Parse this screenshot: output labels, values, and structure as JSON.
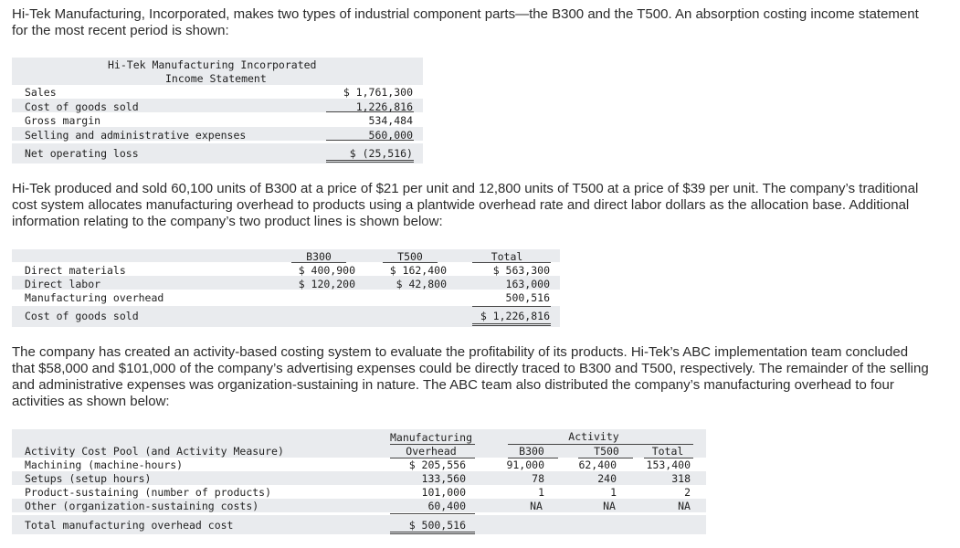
{
  "intro": "Hi-Tek Manufacturing, Incorporated, makes two types of industrial component parts—the B300 and the T500. An absorption costing income statement for the most recent period is shown:",
  "income_statement": {
    "company": "Hi-Tek Manufacturing Incorporated",
    "title": "Income Statement",
    "rows": [
      {
        "label": "Sales",
        "value": "$ 1,761,300"
      },
      {
        "label": "Cost of goods sold",
        "value": "1,226,816"
      },
      {
        "label": "Gross margin",
        "value": "534,484"
      },
      {
        "label": "Selling and administrative expenses",
        "value": "560,000"
      },
      {
        "label": "Net operating loss",
        "value": "$ (25,516)"
      }
    ]
  },
  "para2": "Hi-Tek produced and sold 60,100 units of B300 at a price of $21 per unit and 12,800 units of T500 at a price of $39 per unit. The company’s traditional cost system allocates manufacturing overhead to products using a plantwide overhead rate and direct labor dollars as the allocation base. Additional information relating to the company’s two product lines is shown below:",
  "product_table": {
    "headers": [
      "B300",
      "T500",
      "Total"
    ],
    "rows": [
      {
        "label": "Direct materials",
        "b300": "$ 400,900",
        "t500": "$ 162,400",
        "total": "$ 563,300"
      },
      {
        "label": "Direct labor",
        "b300": "$ 120,200",
        "t500": "$ 42,800",
        "total": "163,000"
      },
      {
        "label": "Manufacturing overhead",
        "b300": "",
        "t500": "",
        "total": "500,516"
      },
      {
        "label": "Cost of goods sold",
        "b300": "",
        "t500": "",
        "total": "$ 1,226,816"
      }
    ]
  },
  "para3": "The company has created an activity-based costing system to evaluate the profitability of its products. Hi-Tek’s ABC implementation team concluded that $58,000 and $101,000 of the company’s advertising expenses could be directly traced to B300 and T500, respectively. The remainder of the selling and administrative expenses was organization-sustaining in nature. The ABC team also distributed the company’s manufacturing overhead to four activities as shown below:",
  "abc_table": {
    "header_pool": "Activity Cost Pool (and Activity Measure)",
    "header_mo_1": "Manufacturing",
    "header_mo_2": "Overhead",
    "header_activity": "Activity",
    "header_b300": "B300",
    "header_t500": "T500",
    "header_total": "Total",
    "rows": [
      {
        "label": "Machining (machine-hours)",
        "mo": "$ 205,556",
        "b300": "91,000",
        "t500": "62,400",
        "total": "153,400"
      },
      {
        "label": "Setups (setup hours)",
        "mo": "133,560",
        "b300": "78",
        "t500": "240",
        "total": "318"
      },
      {
        "label": "Product-sustaining (number of products)",
        "mo": "101,000",
        "b300": "1",
        "t500": "1",
        "total": "2"
      },
      {
        "label": "Other (organization-sustaining costs)",
        "mo": "60,400",
        "b300": "NA",
        "t500": "NA",
        "total": "NA"
      }
    ],
    "total_label": "Total manufacturing overhead cost",
    "total_value": "$ 500,516"
  }
}
